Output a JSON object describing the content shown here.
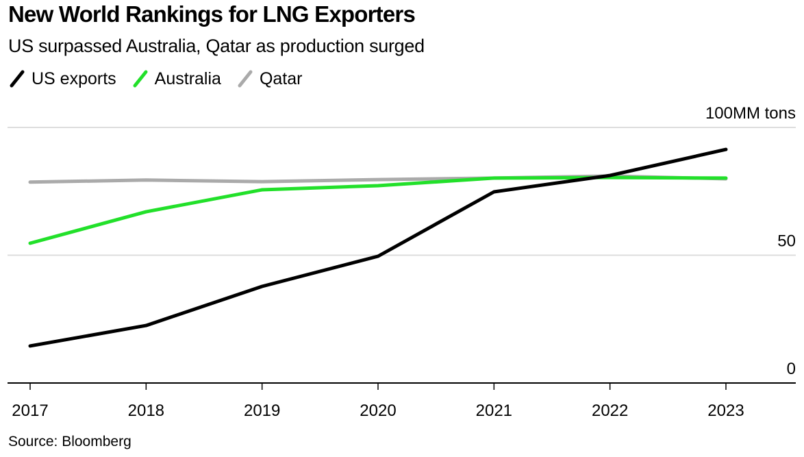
{
  "header": {
    "title": "New World Rankings for LNG Exporters",
    "subtitle": "US surpassed Australia, Qatar as production surged"
  },
  "legend": [
    {
      "label": "US exports",
      "color": "#000000"
    },
    {
      "label": "Australia",
      "color": "#22e02a"
    },
    {
      "label": "Qatar",
      "color": "#aaaaaa"
    }
  ],
  "footer": {
    "source": "Source: Bloomberg"
  },
  "chart_data": {
    "type": "line",
    "title": "New World Rankings for LNG Exporters",
    "subtitle": "US surpassed Australia, Qatar as production surged",
    "xlabel": "",
    "ylabel": "MM tons",
    "x": [
      "2017",
      "2018",
      "2019",
      "2020",
      "2021",
      "2022",
      "2023"
    ],
    "ylim": [
      0,
      100
    ],
    "yticks": [
      0,
      50,
      100
    ],
    "ytick_labels": [
      "0",
      "50",
      "100MM tons"
    ],
    "grid": true,
    "legend_position": "top-left",
    "series": [
      {
        "name": "Qatar",
        "color": "#aaaaaa",
        "values": [
          78.6,
          79.4,
          78.8,
          79.6,
          80.2,
          81.0,
          79.9
        ]
      },
      {
        "name": "Australia",
        "color": "#22e02a",
        "values": [
          54.7,
          67.0,
          75.6,
          77.2,
          80.2,
          80.4,
          80.2
        ]
      },
      {
        "name": "US exports",
        "color": "#000000",
        "values": [
          14.5,
          22.5,
          37.8,
          49.6,
          74.8,
          81.2,
          91.4
        ]
      }
    ],
    "source": "Source: Bloomberg"
  }
}
